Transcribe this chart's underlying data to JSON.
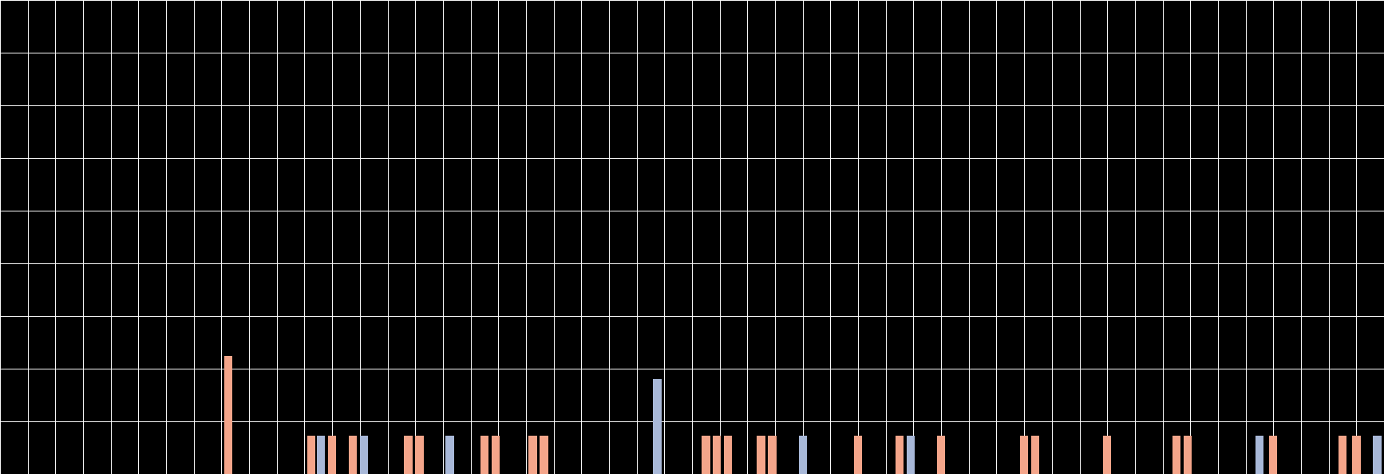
{
  "background_color": "#000000",
  "grid_color": "#ffffff",
  "bar_color_salmon": "#f4a58a",
  "bar_color_blue": "#a8b8d8",
  "xlim": [
    0,
    100
  ],
  "ylim": [
    0,
    10
  ],
  "figsize": [
    17.34,
    5.94
  ],
  "dpi": 100,
  "grid_rows": 9,
  "grid_cols": 50,
  "bars": [
    {
      "x": 16.5,
      "height": 2.5,
      "color": "salmon"
    },
    {
      "x": 22.5,
      "height": 0.8,
      "color": "salmon"
    },
    {
      "x": 23.2,
      "height": 0.8,
      "color": "blue"
    },
    {
      "x": 24.0,
      "height": 0.8,
      "color": "salmon"
    },
    {
      "x": 25.5,
      "height": 0.8,
      "color": "salmon"
    },
    {
      "x": 26.3,
      "height": 0.8,
      "color": "blue"
    },
    {
      "x": 29.5,
      "height": 0.8,
      "color": "salmon"
    },
    {
      "x": 30.3,
      "height": 0.8,
      "color": "salmon"
    },
    {
      "x": 32.5,
      "height": 0.8,
      "color": "blue"
    },
    {
      "x": 35.0,
      "height": 0.8,
      "color": "salmon"
    },
    {
      "x": 35.8,
      "height": 0.8,
      "color": "salmon"
    },
    {
      "x": 38.5,
      "height": 0.8,
      "color": "salmon"
    },
    {
      "x": 39.3,
      "height": 0.8,
      "color": "salmon"
    },
    {
      "x": 47.5,
      "height": 2.0,
      "color": "blue"
    },
    {
      "x": 51.0,
      "height": 0.8,
      "color": "salmon"
    },
    {
      "x": 51.8,
      "height": 0.8,
      "color": "salmon"
    },
    {
      "x": 52.6,
      "height": 0.8,
      "color": "salmon"
    },
    {
      "x": 55.0,
      "height": 0.8,
      "color": "salmon"
    },
    {
      "x": 55.8,
      "height": 0.8,
      "color": "salmon"
    },
    {
      "x": 58.0,
      "height": 0.8,
      "color": "blue"
    },
    {
      "x": 62.0,
      "height": 0.8,
      "color": "salmon"
    },
    {
      "x": 65.0,
      "height": 0.8,
      "color": "salmon"
    },
    {
      "x": 65.8,
      "height": 0.8,
      "color": "blue"
    },
    {
      "x": 68.0,
      "height": 0.8,
      "color": "salmon"
    },
    {
      "x": 74.0,
      "height": 0.8,
      "color": "salmon"
    },
    {
      "x": 74.8,
      "height": 0.8,
      "color": "salmon"
    },
    {
      "x": 80.0,
      "height": 0.8,
      "color": "salmon"
    },
    {
      "x": 85.0,
      "height": 0.8,
      "color": "salmon"
    },
    {
      "x": 85.8,
      "height": 0.8,
      "color": "salmon"
    },
    {
      "x": 91.0,
      "height": 0.8,
      "color": "blue"
    },
    {
      "x": 92.0,
      "height": 0.8,
      "color": "salmon"
    },
    {
      "x": 97.0,
      "height": 0.8,
      "color": "salmon"
    },
    {
      "x": 98.0,
      "height": 0.8,
      "color": "salmon"
    },
    {
      "x": 99.5,
      "height": 0.8,
      "color": "blue"
    }
  ]
}
